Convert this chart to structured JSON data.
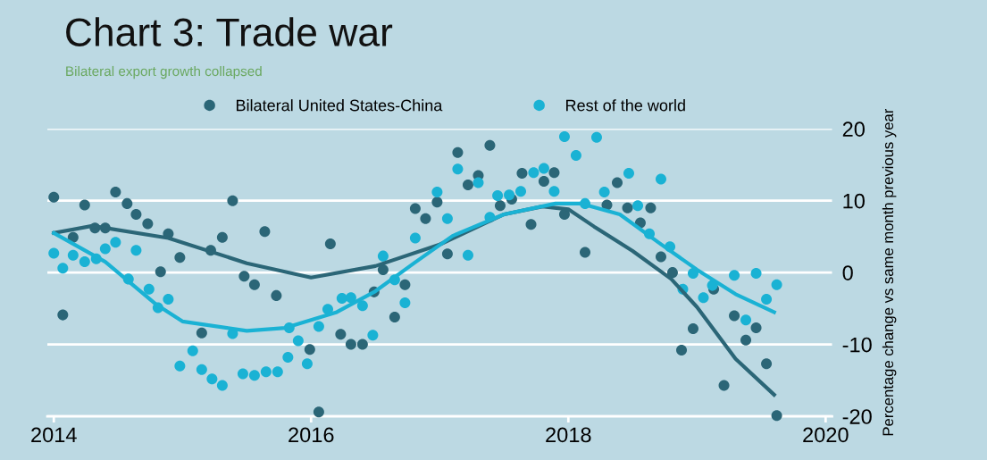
{
  "chart_data": {
    "type": "scatter",
    "title": "Chart 3: Trade war",
    "subtitle": "Bilateral export growth collapsed",
    "ylabel": "Percentage change vs same month previous year",
    "xlim": [
      2013.95,
      2020.05
    ],
    "xticks": [
      2014,
      2016,
      2018,
      2020
    ],
    "ylim": [
      -20,
      20
    ],
    "yticks": [
      -20,
      -10,
      0,
      10,
      20
    ],
    "grid": "y",
    "legend": "top",
    "series": [
      {
        "name": "Bilateral United States-China",
        "marker": "circle",
        "color": "#2b6677",
        "x": [
          2014.0,
          2014.07,
          2014.15,
          2014.24,
          2014.32,
          2014.4,
          2014.48,
          2014.57,
          2014.64,
          2014.73,
          2014.83,
          2014.89,
          2014.98,
          2015.15,
          2015.22,
          2015.31,
          2015.39,
          2015.48,
          2015.56,
          2015.64,
          2015.73,
          2015.99,
          2016.06,
          2016.15,
          2016.23,
          2016.31,
          2016.4,
          2016.49,
          2016.56,
          2016.65,
          2016.73,
          2016.81,
          2016.89,
          2016.98,
          2017.06,
          2017.14,
          2017.22,
          2017.3,
          2017.39,
          2017.47,
          2017.56,
          2017.64,
          2017.71,
          2017.81,
          2017.89,
          2017.97,
          2018.13,
          2018.3,
          2018.38,
          2018.46,
          2018.56,
          2018.64,
          2018.72,
          2018.81,
          2018.88,
          2018.97,
          2019.13,
          2019.21,
          2019.29,
          2019.38,
          2019.46,
          2019.54,
          2019.62
        ],
        "values": [
          10.5,
          -5.9,
          4.9,
          9.4,
          6.2,
          6.2,
          11.2,
          9.6,
          8.1,
          6.8,
          0.1,
          5.4,
          2.1,
          -8.4,
          3.1,
          4.9,
          10.0,
          -0.5,
          -1.7,
          5.7,
          -3.2,
          -10.7,
          -19.4,
          4.0,
          -8.6,
          -10.0,
          -10.0,
          -2.7,
          0.4,
          -6.2,
          -1.7,
          8.9,
          7.5,
          9.8,
          2.6,
          16.7,
          12.2,
          13.5,
          17.7,
          9.3,
          10.2,
          13.8,
          6.7,
          12.7,
          13.9,
          8.1,
          2.8,
          9.4,
          12.5,
          9.0,
          6.9,
          9.0,
          2.2,
          0.0,
          -10.8,
          -7.8,
          -2.3,
          -15.7,
          -6.0,
          -9.4,
          -7.7,
          -12.7,
          -19.9
        ]
      },
      {
        "name": "Rest of the world",
        "marker": "circle",
        "color": "#1ab2d4",
        "x": [
          2014.0,
          2014.07,
          2014.15,
          2014.24,
          2014.33,
          2014.4,
          2014.48,
          2014.58,
          2014.64,
          2014.74,
          2014.81,
          2014.89,
          2014.98,
          2015.08,
          2015.15,
          2015.23,
          2015.31,
          2015.39,
          2015.47,
          2015.56,
          2015.65,
          2015.74,
          2015.82,
          2015.83,
          2015.9,
          2015.97,
          2016.06,
          2016.13,
          2016.24,
          2016.31,
          2016.4,
          2016.48,
          2016.56,
          2016.65,
          2016.73,
          2016.81,
          2016.98,
          2017.06,
          2017.14,
          2017.22,
          2017.3,
          2017.39,
          2017.45,
          2017.54,
          2017.63,
          2017.73,
          2017.81,
          2017.89,
          2017.97,
          2018.06,
          2018.13,
          2018.22,
          2018.28,
          2018.47,
          2018.54,
          2018.63,
          2018.72,
          2018.79,
          2018.89,
          2018.97,
          2019.05,
          2019.12,
          2019.29,
          2019.38,
          2019.46,
          2019.54,
          2019.62
        ],
        "values": [
          2.7,
          0.6,
          2.4,
          1.5,
          1.9,
          3.3,
          4.2,
          -0.9,
          3.1,
          -2.3,
          -4.9,
          -3.7,
          -13.0,
          -10.9,
          -13.5,
          -14.8,
          -15.7,
          -8.5,
          -14.1,
          -14.3,
          -13.8,
          -13.8,
          -11.8,
          -7.7,
          -9.5,
          -12.7,
          -7.5,
          -5.1,
          -3.6,
          -3.5,
          -4.6,
          -8.7,
          2.3,
          -1.0,
          -4.2,
          4.8,
          11.2,
          7.5,
          14.4,
          2.4,
          12.5,
          7.7,
          10.7,
          10.8,
          11.3,
          13.9,
          14.5,
          11.3,
          18.9,
          16.3,
          9.6,
          18.8,
          11.2,
          13.8,
          9.3,
          5.4,
          13.0,
          3.6,
          -2.3,
          -0.1,
          -3.5,
          -1.8,
          -0.4,
          -6.6,
          -0.1,
          -3.7,
          -1.7
        ]
      },
      {
        "type": "line",
        "marker": "none",
        "color": "#2b6677",
        "x": [
          2014.0,
          2014.3,
          2014.89,
          2015.5,
          2016.0,
          2016.5,
          2017.0,
          2017.5,
          2017.8,
          2018.0,
          2018.2,
          2018.5,
          2018.8,
          2019.0,
          2019.3,
          2019.6
        ],
        "values": [
          5.5,
          6.5,
          4.8,
          1.3,
          -0.7,
          0.9,
          3.9,
          8.1,
          9.2,
          8.8,
          6.4,
          3.0,
          -0.9,
          -4.8,
          -12.0,
          -17.0
        ]
      },
      {
        "type": "line",
        "marker": "none",
        "color": "#1ab2d4",
        "x": [
          2014.0,
          2014.4,
          2014.8,
          2015.0,
          2015.5,
          2015.8,
          2016.2,
          2016.5,
          2016.8,
          2017.1,
          2017.5,
          2017.9,
          2018.1,
          2018.4,
          2018.7,
          2019.0,
          2019.3,
          2019.6
        ],
        "values": [
          5.5,
          1.5,
          -4.5,
          -6.8,
          -8.1,
          -7.7,
          -5.5,
          -2.6,
          1.3,
          5.1,
          8.1,
          9.6,
          9.6,
          8.1,
          4.2,
          0.4,
          -3.0,
          -5.5
        ]
      }
    ]
  }
}
